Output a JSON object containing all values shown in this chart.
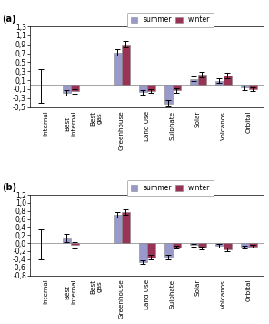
{
  "categories": [
    "Internal",
    "Best\ninternal",
    "Best\ngas",
    "Greenhouse",
    "Land Use",
    "Sulphate",
    "Solar",
    "Volcanos",
    "Orbital"
  ],
  "panel_a": {
    "summer": [
      0.0,
      -0.18,
      0.0,
      0.72,
      -0.17,
      -0.42,
      0.13,
      0.09,
      -0.07
    ],
    "winter": [
      null,
      -0.15,
      null,
      0.9,
      -0.15,
      -0.13,
      0.22,
      0.2,
      -0.1
    ],
    "summer_err_plus": [
      0.35,
      0.06,
      0.0,
      0.07,
      0.05,
      0.07,
      0.05,
      0.05,
      0.05
    ],
    "summer_err_minus": [
      0.4,
      0.06,
      0.0,
      0.07,
      0.05,
      0.07,
      0.05,
      0.05,
      0.05
    ],
    "winter_err_plus": [
      0.0,
      0.05,
      0.0,
      0.07,
      0.04,
      0.05,
      0.06,
      0.06,
      0.04
    ],
    "winter_err_minus": [
      0.0,
      0.05,
      0.0,
      0.07,
      0.04,
      0.05,
      0.06,
      0.06,
      0.04
    ],
    "ylim": [
      -0.5,
      1.3
    ],
    "yticks": [
      -0.5,
      -0.3,
      -0.1,
      0.1,
      0.3,
      0.5,
      0.7,
      0.9,
      1.1,
      1.3
    ]
  },
  "panel_b": {
    "summer": [
      0.0,
      0.12,
      0.0,
      0.7,
      -0.47,
      -0.35,
      -0.05,
      -0.07,
      -0.1
    ],
    "winter": [
      null,
      -0.05,
      null,
      0.78,
      -0.35,
      -0.1,
      -0.12,
      -0.16,
      -0.08
    ],
    "summer_err_plus": [
      0.35,
      0.1,
      0.0,
      0.07,
      0.05,
      0.06,
      0.04,
      0.04,
      0.04
    ],
    "summer_err_minus": [
      0.4,
      0.1,
      0.0,
      0.07,
      0.05,
      0.06,
      0.04,
      0.04,
      0.04
    ],
    "winter_err_plus": [
      0.0,
      0.08,
      0.0,
      0.07,
      0.06,
      0.04,
      0.04,
      0.04,
      0.03
    ],
    "winter_err_minus": [
      0.0,
      0.08,
      0.0,
      0.07,
      0.06,
      0.04,
      0.04,
      0.04,
      0.03
    ],
    "ylim": [
      -0.8,
      1.2
    ],
    "yticks": [
      -0.8,
      -0.6,
      -0.4,
      -0.2,
      0.0,
      0.2,
      0.4,
      0.6,
      0.8,
      1.0,
      1.2
    ]
  },
  "summer_color": "#9999cc",
  "winter_color": "#993355",
  "bar_width": 0.32,
  "figsize": [
    2.96,
    3.56
  ],
  "dpi": 100
}
